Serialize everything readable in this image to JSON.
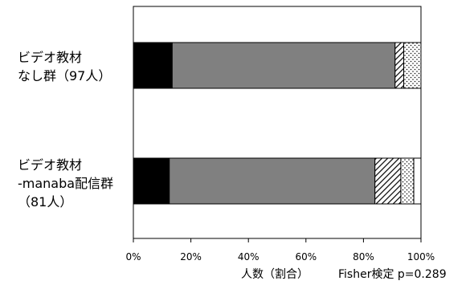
{
  "chart_data": {
    "type": "bar",
    "orientation": "horizontal",
    "stacked": true,
    "percent_scale": true,
    "categories": [
      [
        "ビデオ教材",
        "なし群（97人）"
      ],
      [
        "ビデオ教材",
        "-manaba配信群",
        "（81人）"
      ]
    ],
    "series": [
      {
        "values": [
          13.5,
          12.5
        ],
        "pattern": "solid",
        "color": "#000000"
      },
      {
        "values": [
          77.5,
          71.5
        ],
        "pattern": "solid",
        "color": "#808080"
      },
      {
        "values": [
          3.0,
          9.0
        ],
        "pattern": "diagonal-hatch",
        "color": "#000000"
      },
      {
        "values": [
          6.0,
          4.5
        ],
        "pattern": "dots",
        "color": "#000000"
      },
      {
        "values": [
          0.0,
          2.5
        ],
        "pattern": "solid",
        "color": "#ffffff"
      }
    ],
    "xlim": [
      0,
      100
    ],
    "xticks": [
      "0%",
      "20%",
      "40%",
      "60%",
      "80%",
      "100%"
    ],
    "xlabel": "人数（割合）",
    "annotation": "Fisher検定  p=0.289",
    "grid": false,
    "legend": "none"
  }
}
